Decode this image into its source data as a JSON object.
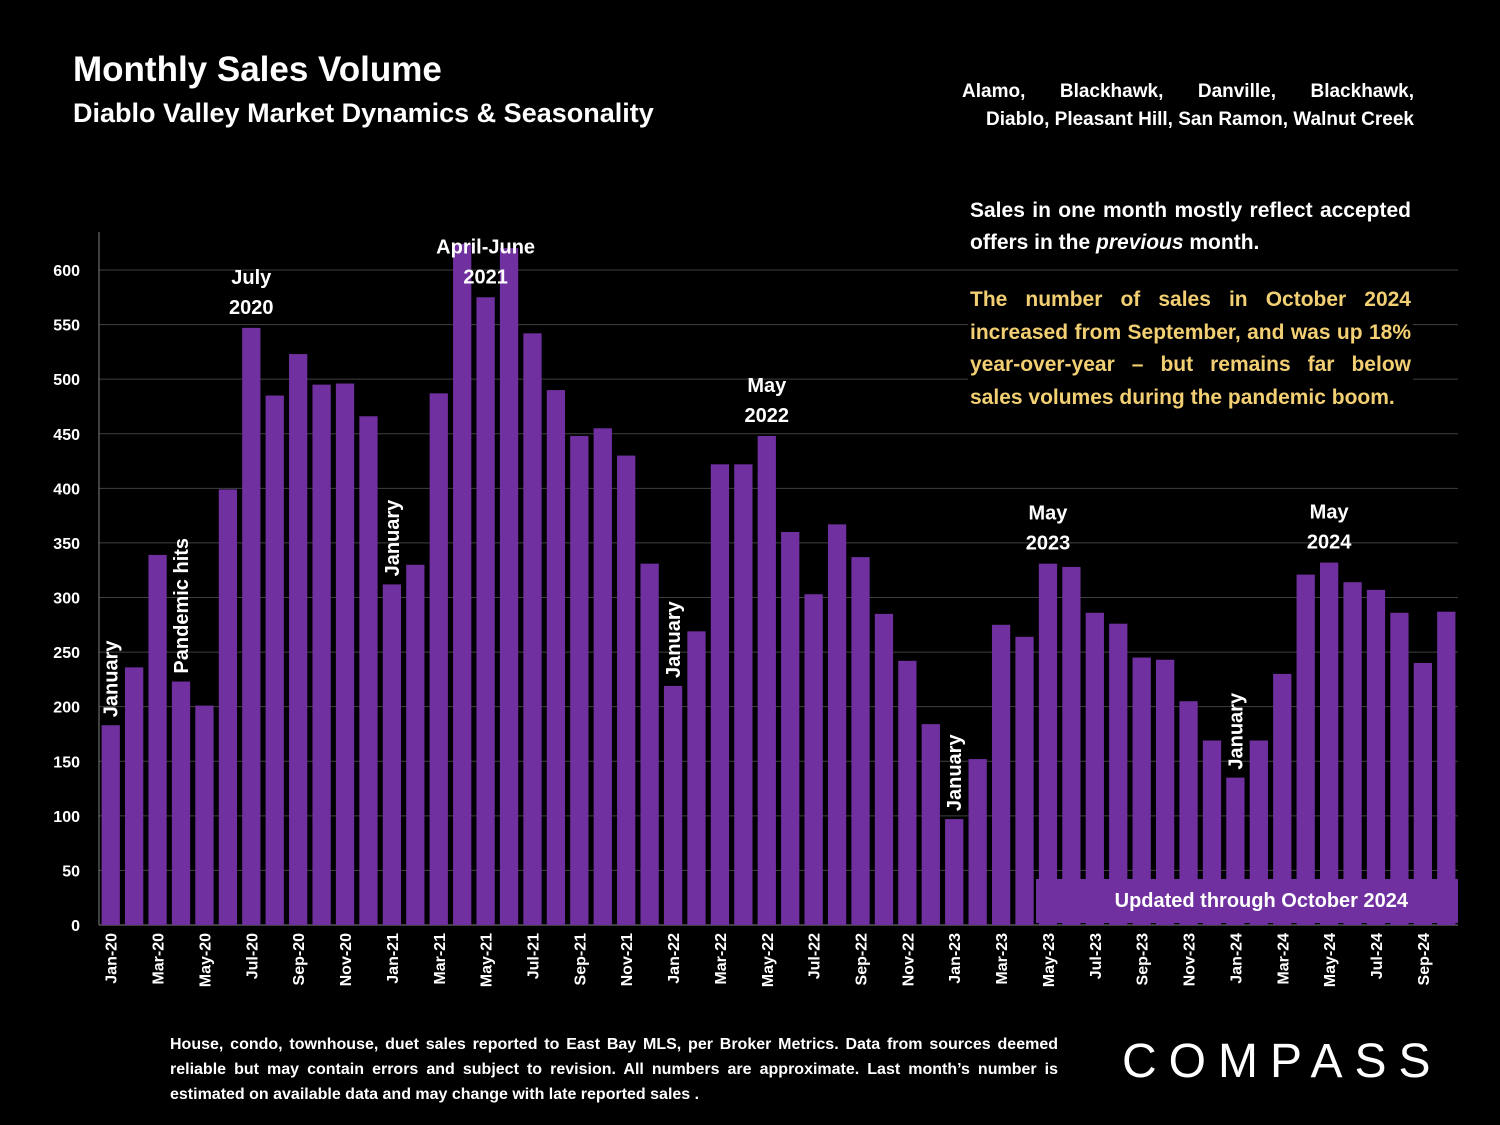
{
  "header": {
    "title": "Monthly Sales Volume",
    "subtitle": "Diablo Valley Market Dynamics & Seasonality",
    "region_line1": "Alamo, Blackhawk, Danville, Blackhawk,",
    "region_line2": "Diablo, Pleasant Hill, San Ramon, Walnut Creek"
  },
  "notes": {
    "note1_part1": "Sales in one month mostly reflect accepted offers in the ",
    "note1_em": "previous",
    "note1_part2": " month.",
    "note2": "The number of sales in October 2024 increased from September, and was up 18% year-over-year – but remains far below sales volumes during the pandemic boom."
  },
  "badge": {
    "updated": "Updated through October 2024"
  },
  "footnote": "House, condo, townhouse, duet sales reported to East Bay MLS, per Broker Metrics. Data from sources deemed reliable but may contain errors and subject to revision. All numbers are approximate. Last month’s number is estimated on available data and may change with late reported sales .",
  "logo": "COMPASS",
  "colors": {
    "bar": "#7030a0",
    "grid": "#404040",
    "background": "#000000",
    "highlight_text": "#f2cf72"
  },
  "chart_data": {
    "type": "bar",
    "title": "Monthly Sales Volume",
    "ylim": [
      0,
      630
    ],
    "yticks": [
      0,
      50,
      100,
      150,
      200,
      250,
      300,
      350,
      400,
      450,
      500,
      550,
      600
    ],
    "grid": true,
    "categories": [
      "Jan-20",
      "Feb-20",
      "Mar-20",
      "Apr-20",
      "May-20",
      "Jun-20",
      "Jul-20",
      "Aug-20",
      "Sep-20",
      "Oct-20",
      "Nov-20",
      "Dec-20",
      "Jan-21",
      "Feb-21",
      "Mar-21",
      "Apr-21",
      "May-21",
      "Jun-21",
      "Jul-21",
      "Aug-21",
      "Sep-21",
      "Oct-21",
      "Nov-21",
      "Dec-21",
      "Jan-22",
      "Feb-22",
      "Mar-22",
      "Apr-22",
      "May-22",
      "Jun-22",
      "Jul-22",
      "Aug-22",
      "Sep-22",
      "Oct-22",
      "Nov-22",
      "Dec-22",
      "Jan-23",
      "Feb-23",
      "Mar-23",
      "Apr-23",
      "May-23",
      "Jun-23",
      "Jul-23",
      "Aug-23",
      "Sep-23",
      "Oct-23",
      "Nov-23",
      "Dec-23",
      "Jan-24",
      "Feb-24",
      "Mar-24",
      "Apr-24",
      "May-24",
      "Jun-24",
      "Jul-24",
      "Aug-24",
      "Sep-24",
      "Oct-24"
    ],
    "xtick_labels": [
      "Jan-20",
      "Mar-20",
      "May-20",
      "Jul-20",
      "Sep-20",
      "Nov-20",
      "Jan-21",
      "Mar-21",
      "May-21",
      "Jul-21",
      "Sep-21",
      "Nov-21",
      "Jan-22",
      "Mar-22",
      "May-22",
      "Jul-22",
      "Sep-22",
      "Nov-22",
      "Jan-23",
      "Mar-23",
      "May-23",
      "Jul-23",
      "Sep-23",
      "Nov-23",
      "Jan-24",
      "Mar-24",
      "May-24",
      "Jul-24",
      "Sep-24"
    ],
    "values": [
      183,
      236,
      339,
      223,
      201,
      399,
      547,
      485,
      523,
      495,
      496,
      466,
      312,
      330,
      487,
      624,
      575,
      620,
      542,
      490,
      448,
      455,
      430,
      331,
      219,
      269,
      422,
      422,
      448,
      360,
      303,
      367,
      337,
      285,
      242,
      184,
      97,
      152,
      275,
      264,
      331,
      328,
      286,
      276,
      245,
      243,
      205,
      169,
      135,
      169,
      230,
      321,
      332,
      314,
      307,
      286,
      240,
      287
    ],
    "annotations": [
      {
        "text": "January",
        "index": 0,
        "orientation": "vertical"
      },
      {
        "text": "Pandemic hits",
        "index": 3,
        "orientation": "vertical"
      },
      {
        "text": "January",
        "index": 12,
        "orientation": "vertical"
      },
      {
        "text": "January",
        "index": 24,
        "orientation": "vertical"
      },
      {
        "text": "January",
        "index": 36,
        "orientation": "vertical"
      },
      {
        "text": "January",
        "index": 48,
        "orientation": "vertical"
      },
      {
        "text": "July|2020",
        "index": 6,
        "orientation": "horizontal"
      },
      {
        "text": "April-June|2021",
        "index": 16,
        "orientation": "horizontal"
      },
      {
        "text": "May|2022",
        "index": 28,
        "orientation": "horizontal"
      },
      {
        "text": "May|2023",
        "index": 40,
        "orientation": "horizontal"
      },
      {
        "text": "May|2024",
        "index": 52,
        "orientation": "horizontal"
      }
    ]
  }
}
